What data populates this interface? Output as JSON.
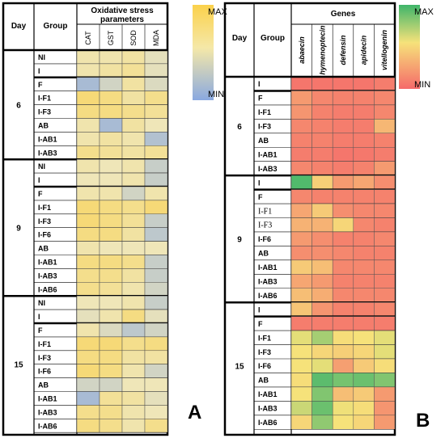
{
  "panel_a": {
    "panel_label": "A",
    "day_header": "Day",
    "group_header": "Group",
    "params_title": [
      "Oxidative stress",
      "parameters"
    ],
    "legend": {
      "max_label": "MAX",
      "min_label": "MIN",
      "max_color": "#fbd14b",
      "min_color": "#8aa9e0"
    }
  },
  "panel_b": {
    "panel_label": "B",
    "day_header": "Day",
    "group_header": "Group",
    "genes_title": "Genes",
    "legend": {
      "max_label": "MAX",
      "min_label": "MIN",
      "max_color": "#3fb56a",
      "min_color": "#f56a6a"
    }
  },
  "chart_data": [
    {
      "type": "heatmap",
      "panel": "A",
      "columns": [
        "CAT",
        "GST",
        "SOD",
        "MDA"
      ],
      "color_scale": {
        "min": "#8aa9e0",
        "mid": "#efe6b8",
        "max": "#fbd14b"
      },
      "blocks": [
        {
          "day": "6",
          "rows": [
            {
              "group": "NI",
              "values": [
                0.55,
                0.55,
                0.6,
                0.45
              ]
            },
            {
              "group": "I",
              "values": [
                0.55,
                0.6,
                0.65,
                0.45
              ]
            },
            {
              "group": "F",
              "values": [
                0.15,
                0.35,
                0.6,
                0.4
              ]
            },
            {
              "group": "I-F1",
              "values": [
                0.8,
                0.75,
                0.6,
                0.7
              ]
            },
            {
              "group": "I-F3",
              "values": [
                0.75,
                0.75,
                0.7,
                0.65
              ]
            },
            {
              "group": "AB",
              "values": [
                0.55,
                0.15,
                0.6,
                0.5
              ]
            },
            {
              "group": "I-AB1",
              "values": [
                0.55,
                0.6,
                0.55,
                0.2
              ]
            },
            {
              "group": "I-AB3",
              "values": [
                0.7,
                0.65,
                0.6,
                0.65
              ]
            }
          ]
        },
        {
          "day": "9",
          "rows": [
            {
              "group": "NI",
              "values": [
                0.55,
                0.5,
                0.55,
                0.3
              ]
            },
            {
              "group": "I",
              "values": [
                0.5,
                0.5,
                0.55,
                0.3
              ]
            },
            {
              "group": "F",
              "values": [
                0.55,
                0.55,
                0.35,
                0.55
              ]
            },
            {
              "group": "I-F1",
              "values": [
                0.8,
                0.75,
                0.7,
                0.8
              ]
            },
            {
              "group": "I-F3",
              "values": [
                0.8,
                0.75,
                0.65,
                0.3
              ]
            },
            {
              "group": "I-F6",
              "values": [
                0.75,
                0.75,
                0.6,
                0.25
              ]
            },
            {
              "group": "AB",
              "values": [
                0.55,
                0.5,
                0.5,
                0.5
              ]
            },
            {
              "group": "I-AB1",
              "values": [
                0.75,
                0.75,
                0.7,
                0.3
              ]
            },
            {
              "group": "I-AB3",
              "values": [
                0.7,
                0.7,
                0.6,
                0.3
              ]
            },
            {
              "group": "I-AB6",
              "values": [
                0.7,
                0.65,
                0.55,
                0.35
              ]
            }
          ]
        },
        {
          "day": "15",
          "rows": [
            {
              "group": "NI",
              "values": [
                0.5,
                0.5,
                0.55,
                0.3
              ]
            },
            {
              "group": "I",
              "values": [
                0.45,
                0.55,
                0.75,
                0.45
              ]
            },
            {
              "group": "F",
              "values": [
                0.55,
                0.4,
                0.25,
                0.35
              ]
            },
            {
              "group": "I-F1",
              "values": [
                0.8,
                0.8,
                0.7,
                0.75
              ]
            },
            {
              "group": "I-F3",
              "values": [
                0.75,
                0.75,
                0.6,
                0.6
              ]
            },
            {
              "group": "I-F6",
              "values": [
                0.8,
                0.75,
                0.55,
                0.35
              ]
            },
            {
              "group": "AB",
              "values": [
                0.35,
                0.35,
                0.5,
                0.5
              ]
            },
            {
              "group": "I-AB1",
              "values": [
                0.15,
                0.65,
                0.6,
                0.45
              ]
            },
            {
              "group": "I-AB3",
              "values": [
                0.7,
                0.7,
                0.55,
                0.5
              ]
            },
            {
              "group": "I-AB6",
              "values": [
                0.75,
                0.7,
                0.55,
                0.7
              ]
            }
          ]
        }
      ]
    },
    {
      "type": "heatmap",
      "panel": "B",
      "columns": [
        "abaecin",
        "hymenoptecin",
        "defensin",
        "apidecin",
        "vitellogenin"
      ],
      "color_scale": {
        "min": "#f56a6a",
        "mid": "#f6e27a",
        "max": "#3fb56a"
      },
      "blocks": [
        {
          "day": "6",
          "rows": [
            {
              "group": "I",
              "values": [
                0.05,
                0.05,
                0.05,
                0.05,
                0.08
              ]
            },
            {
              "group": "F",
              "values": [
                0.2,
                0.12,
                0.1,
                0.1,
                0.12
              ]
            },
            {
              "group": "I-F1",
              "values": [
                0.18,
                0.1,
                0.08,
                0.08,
                0.12
              ]
            },
            {
              "group": "I-F3",
              "values": [
                0.12,
                0.1,
                0.08,
                0.08,
                0.32
              ]
            },
            {
              "group": "AB",
              "values": [
                0.1,
                0.1,
                0.08,
                0.08,
                0.1
              ]
            },
            {
              "group": "I-AB1",
              "values": [
                0.08,
                0.08,
                0.05,
                0.06,
                0.08
              ]
            },
            {
              "group": "I-AB3",
              "values": [
                0.12,
                0.1,
                0.08,
                0.1,
                0.2
              ]
            }
          ]
        },
        {
          "day": "9",
          "rows": [
            {
              "group": "I",
              "values": [
                0.95,
                0.42,
                0.2,
                0.25,
                0.15
              ]
            },
            {
              "group": "F",
              "values": [
                0.12,
                0.1,
                0.1,
                0.1,
                0.1
              ]
            },
            {
              "group": "I-F1",
              "values": [
                0.25,
                0.4,
                0.15,
                0.12,
                0.12
              ]
            },
            {
              "group": "I-F3",
              "values": [
                0.3,
                0.3,
                0.45,
                0.12,
                0.1
              ]
            },
            {
              "group": "I-F6",
              "values": [
                0.2,
                0.15,
                0.1,
                0.1,
                0.12
              ]
            },
            {
              "group": "AB",
              "values": [
                0.15,
                0.15,
                0.12,
                0.1,
                0.1
              ]
            },
            {
              "group": "I-AB1",
              "values": [
                0.4,
                0.35,
                0.12,
                0.12,
                0.12
              ]
            },
            {
              "group": "I-AB3",
              "values": [
                0.25,
                0.2,
                0.1,
                0.1,
                0.1
              ]
            },
            {
              "group": "I-AB6",
              "values": [
                0.35,
                0.28,
                0.12,
                0.12,
                0.12
              ]
            }
          ]
        },
        {
          "day": "15",
          "rows": [
            {
              "group": "I",
              "values": [
                0.38,
                0.18,
                0.1,
                0.1,
                0.12
              ]
            },
            {
              "group": "F",
              "values": [
                0.08,
                0.08,
                0.08,
                0.08,
                0.08
              ]
            },
            {
              "group": "I-F1",
              "values": [
                0.55,
                0.72,
                0.48,
                0.5,
                0.55
              ]
            },
            {
              "group": "I-F3",
              "values": [
                0.5,
                0.45,
                0.42,
                0.45,
                0.55
              ]
            },
            {
              "group": "I-F6",
              "values": [
                0.5,
                0.55,
                0.22,
                0.4,
                0.48
              ]
            },
            {
              "group": "AB",
              "values": [
                0.48,
                0.92,
                0.85,
                0.88,
                0.82
              ]
            },
            {
              "group": "I-AB1",
              "values": [
                0.5,
                0.82,
                0.35,
                0.4,
                0.2
              ]
            },
            {
              "group": "I-AB3",
              "values": [
                0.62,
                0.88,
                0.52,
                0.48,
                0.18
              ]
            },
            {
              "group": "I-AB6",
              "values": [
                0.45,
                0.78,
                0.5,
                0.45,
                0.2
              ]
            }
          ]
        }
      ]
    }
  ]
}
